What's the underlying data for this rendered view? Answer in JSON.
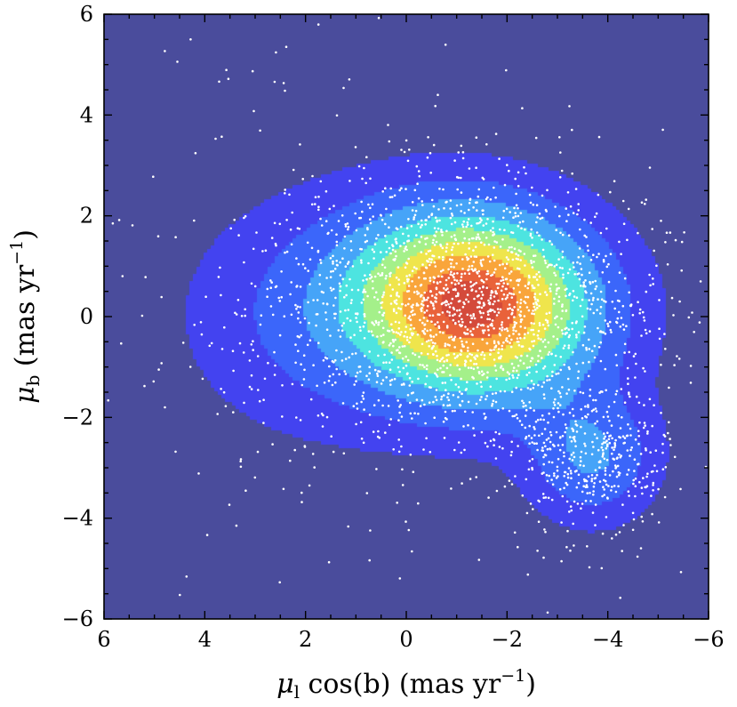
{
  "chart_data": {
    "type": "density",
    "title": "",
    "xlabel": "μl cos(b) (mas yr−1)",
    "xlabel_parts": {
      "symbol": "μ",
      "subscript": "l",
      "body": " cos(b) (mas yr",
      "exponent": "−1",
      "close": ")"
    },
    "ylabel": "μb (mas yr−1)",
    "ylabel_parts": {
      "symbol": "μ",
      "subscript": "b",
      "body": " (mas yr",
      "exponent": "−1",
      "close": ")"
    },
    "xlim": [
      6,
      -6
    ],
    "ylim": [
      -6,
      6
    ],
    "xaxis_inverted": true,
    "xticks": [
      6,
      4,
      2,
      0,
      -2,
      -4,
      -6
    ],
    "xtick_labels": [
      "6",
      "4",
      "2",
      "0",
      "−2",
      "−4",
      "−6"
    ],
    "yticks": [
      -6,
      -4,
      -2,
      0,
      2,
      4,
      6
    ],
    "ytick_labels": [
      "−6",
      "−4",
      "−2",
      "0",
      "2",
      "4",
      "6"
    ],
    "background_color": "#4A4C9C",
    "point_color": "#FFFFFF",
    "grid": false,
    "legend": "none",
    "density_levels": [
      {
        "level": 1,
        "color": "#4343F0"
      },
      {
        "level": 2,
        "color": "#3B66FA"
      },
      {
        "level": 3,
        "color": "#46A4F8"
      },
      {
        "level": 4,
        "color": "#4DE4E0"
      },
      {
        "level": 5,
        "color": "#A4F08A"
      },
      {
        "level": 6,
        "color": "#EFE54C"
      },
      {
        "level": 7,
        "color": "#F9A53B"
      },
      {
        "level": 8,
        "color": "#E9623A"
      },
      {
        "level": 9,
        "color": "#D44A3B"
      }
    ],
    "density_components": [
      {
        "mx": -1.4,
        "my": 0.25,
        "sx": 1.6,
        "sy": 1.25,
        "rho": 0.05,
        "weight": 1.0
      },
      {
        "mx": -3.7,
        "my": -2.8,
        "sx": 0.85,
        "sy": 0.85,
        "rho": 0.0,
        "weight": 0.28
      },
      {
        "mx": 1.6,
        "my": 0.0,
        "sx": 1.9,
        "sy": 1.6,
        "rho": 0.0,
        "weight": 0.18
      }
    ],
    "point_count": 2600,
    "point_components": [
      {
        "mx": -1.4,
        "my": 0.25,
        "sx": 1.6,
        "sy": 1.25,
        "fraction": 0.62
      },
      {
        "mx": -3.7,
        "my": -2.8,
        "sx": 0.75,
        "sy": 0.75,
        "fraction": 0.15
      },
      {
        "mx": 1.2,
        "my": 0.0,
        "sx": 1.9,
        "sy": 1.6,
        "fraction": 0.13
      },
      {
        "mx": 0.0,
        "my": 0.0,
        "sx": 4.0,
        "sy": 3.2,
        "fraction": 0.1
      }
    ]
  }
}
